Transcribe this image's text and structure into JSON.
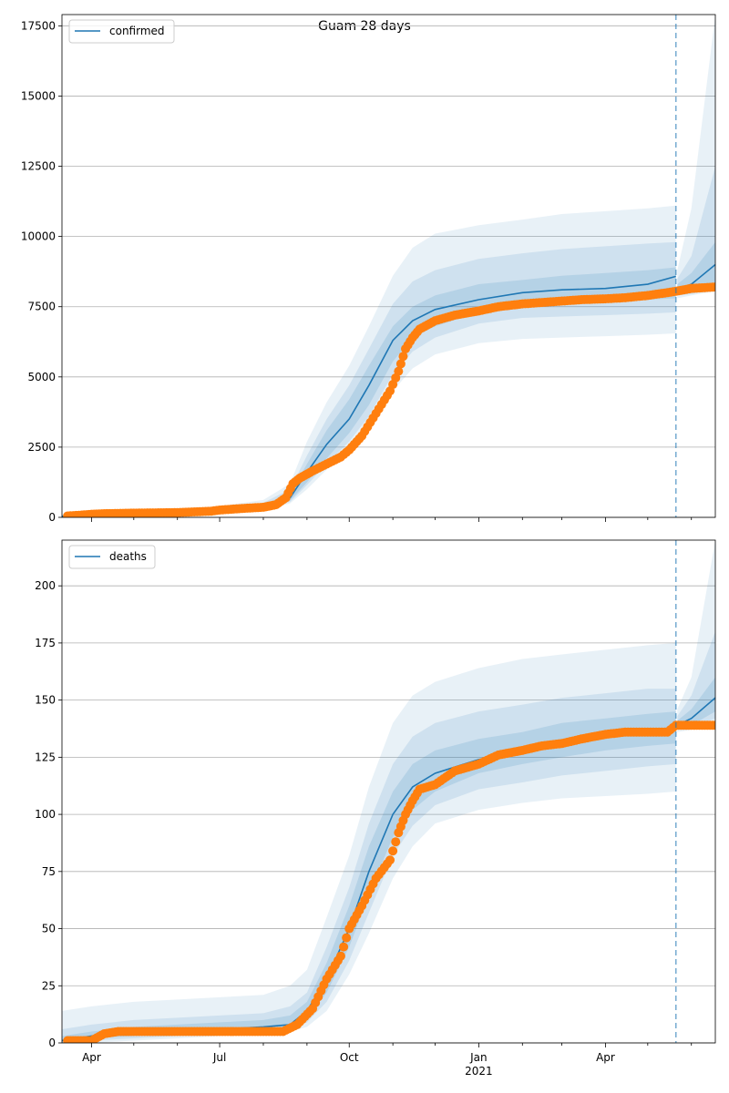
{
  "figure": {
    "title": "Guam 28 days"
  },
  "colors": {
    "model_line": "#1f77b4",
    "observed": "#ff7f0e",
    "band": "#1f77b4",
    "grid": "#b0b0b0",
    "forecast_line": "#1f77b4"
  },
  "chart_data": [
    {
      "type": "line",
      "legend": "confirmed",
      "legend_position": "upper-left",
      "grid": "y",
      "xlim": [
        "2020-03-11",
        "2021-06-18"
      ],
      "ylim": [
        0,
        17900
      ],
      "yticks": [
        0,
        2500,
        5000,
        7500,
        10000,
        12500,
        15000,
        17500
      ],
      "ytick_labels": [
        "0",
        "2500",
        "5000",
        "7500",
        "10000",
        "12500",
        "15000",
        "17500"
      ],
      "xticks": [
        {
          "date": "2020-04-01",
          "label": "Apr"
        },
        {
          "date": "2020-07-01",
          "label": "Jul"
        },
        {
          "date": "2020-10-01",
          "label": "Oct"
        },
        {
          "date": "2021-01-01",
          "label": "Jan",
          "sublabel": "2021"
        },
        {
          "date": "2021-04-01",
          "label": "Apr"
        }
      ],
      "forecast_start": "2021-05-21",
      "model": {
        "name": "confirmed",
        "x": [
          "2020-03-11",
          "2020-04-01",
          "2020-05-01",
          "2020-06-01",
          "2020-07-01",
          "2020-08-01",
          "2020-08-20",
          "2020-09-01",
          "2020-09-15",
          "2020-10-01",
          "2020-10-15",
          "2020-11-01",
          "2020-11-15",
          "2020-12-01",
          "2021-01-01",
          "2021-02-01",
          "2021-03-01",
          "2021-04-01",
          "2021-05-01",
          "2021-05-21",
          "2021-05-22",
          "2021-06-01",
          "2021-06-18"
        ],
        "y": [
          40,
          90,
          110,
          150,
          240,
          380,
          700,
          1600,
          2600,
          3500,
          4700,
          6300,
          7000,
          7400,
          7750,
          8000,
          8100,
          8150,
          8300,
          8580,
          8110,
          8300,
          9000
        ],
        "inner_low": [
          30,
          70,
          90,
          120,
          200,
          320,
          600,
          1250,
          2100,
          3000,
          4000,
          5550,
          6400,
          6800,
          7300,
          7500,
          7600,
          7700,
          7750,
          7800,
          8000,
          8050,
          8300
        ],
        "inner_high": [
          60,
          120,
          140,
          190,
          300,
          450,
          850,
          1900,
          3100,
          4200,
          5400,
          6800,
          7500,
          7900,
          8300,
          8450,
          8600,
          8700,
          8800,
          8900,
          8300,
          8700,
          9800
        ],
        "mid_low": [
          20,
          60,
          80,
          110,
          180,
          280,
          550,
          1150,
          1900,
          2700,
          3600,
          5100,
          5900,
          6400,
          6900,
          7100,
          7150,
          7200,
          7250,
          7300,
          7900,
          7950,
          8150
        ],
        "mid_high": [
          80,
          150,
          170,
          220,
          340,
          520,
          1000,
          2200,
          3500,
          4700,
          6000,
          7600,
          8400,
          8800,
          9200,
          9400,
          9550,
          9650,
          9750,
          9800,
          8500,
          9300,
          12500
        ],
        "outer_low": [
          10,
          40,
          60,
          90,
          150,
          240,
          500,
          1000,
          1700,
          2400,
          3200,
          4500,
          5300,
          5800,
          6200,
          6350,
          6400,
          6450,
          6500,
          6550,
          7800,
          7900,
          8050
        ],
        "outer_high": [
          110,
          200,
          220,
          270,
          400,
          620,
          1200,
          2700,
          4100,
          5400,
          6800,
          8600,
          9600,
          10100,
          10400,
          10600,
          10800,
          10900,
          11000,
          11100,
          8800,
          11000,
          17900
        ]
      },
      "observed": {
        "x": [
          "2020-03-15",
          "2020-03-25",
          "2020-04-01",
          "2020-04-10",
          "2020-05-01",
          "2020-06-01",
          "2020-06-25",
          "2020-07-01",
          "2020-07-15",
          "2020-08-01",
          "2020-08-10",
          "2020-08-17",
          "2020-08-22",
          "2020-08-27",
          "2020-09-05",
          "2020-09-15",
          "2020-09-25",
          "2020-10-01",
          "2020-10-10",
          "2020-10-20",
          "2020-10-30",
          "2020-11-05",
          "2020-11-10",
          "2020-11-15",
          "2020-11-20",
          "2020-12-01",
          "2020-12-15",
          "2021-01-01",
          "2021-01-15",
          "2021-02-01",
          "2021-02-15",
          "2021-03-01",
          "2021-03-15",
          "2021-04-01",
          "2021-04-15",
          "2021-05-01",
          "2021-05-15",
          "2021-05-21",
          "2021-06-01",
          "2021-06-18"
        ],
        "y": [
          50,
          80,
          110,
          130,
          150,
          170,
          220,
          260,
          310,
          360,
          450,
          700,
          1200,
          1400,
          1650,
          1900,
          2150,
          2400,
          2900,
          3700,
          4500,
          5200,
          6000,
          6400,
          6700,
          7000,
          7200,
          7350,
          7500,
          7600,
          7650,
          7700,
          7750,
          7780,
          7820,
          7900,
          8000,
          8050,
          8150,
          8200
        ]
      }
    },
    {
      "type": "line",
      "legend": "deaths",
      "legend_position": "upper-left",
      "grid": "y",
      "xlim": [
        "2020-03-11",
        "2021-06-18"
      ],
      "ylim": [
        0,
        220
      ],
      "yticks": [
        0,
        25,
        50,
        75,
        100,
        125,
        150,
        175,
        200
      ],
      "ytick_labels": [
        "0",
        "25",
        "50",
        "75",
        "100",
        "125",
        "150",
        "175",
        "200"
      ],
      "xticks": [
        {
          "date": "2020-04-01",
          "label": "Apr"
        },
        {
          "date": "2020-07-01",
          "label": "Jul"
        },
        {
          "date": "2020-10-01",
          "label": "Oct"
        },
        {
          "date": "2021-01-01",
          "label": "Jan",
          "sublabel": "2021"
        },
        {
          "date": "2021-04-01",
          "label": "Apr"
        }
      ],
      "forecast_start": "2021-05-21",
      "model": {
        "name": "deaths",
        "x": [
          "2020-03-11",
          "2020-04-01",
          "2020-05-01",
          "2020-06-01",
          "2020-07-01",
          "2020-08-01",
          "2020-08-20",
          "2020-09-01",
          "2020-09-15",
          "2020-10-01",
          "2020-10-15",
          "2020-11-01",
          "2020-11-15",
          "2020-12-01",
          "2021-01-01",
          "2021-02-01",
          "2021-03-01",
          "2021-04-01",
          "2021-05-01",
          "2021-05-21",
          "2021-05-22",
          "2021-06-01",
          "2021-06-18"
        ],
        "y": [
          1,
          3,
          5,
          5,
          6,
          7,
          8,
          14,
          28,
          50,
          75,
          100,
          112,
          118,
          124,
          128,
          132,
          135,
          137,
          138,
          139,
          142,
          151
        ],
        "inner_low": [
          0,
          2,
          3,
          4,
          5,
          6,
          7,
          11,
          22,
          42,
          65,
          90,
          102,
          110,
          118,
          122,
          125,
          128,
          130,
          131,
          138,
          139,
          145
        ],
        "inner_high": [
          3,
          5,
          7,
          8,
          9,
          10,
          12,
          18,
          35,
          60,
          86,
          110,
          122,
          128,
          133,
          136,
          140,
          142,
          144,
          145,
          141,
          146,
          160
        ],
        "mid_low": [
          0,
          1,
          2,
          3,
          4,
          5,
          6,
          9,
          18,
          36,
          57,
          82,
          95,
          104,
          111,
          114,
          117,
          119,
          121,
          122,
          137,
          138,
          142
        ],
        "mid_high": [
          6,
          8,
          10,
          11,
          12,
          13,
          16,
          22,
          42,
          68,
          96,
          122,
          134,
          140,
          145,
          148,
          151,
          153,
          155,
          155,
          143,
          152,
          180
        ],
        "outer_low": [
          0,
          0,
          1,
          2,
          3,
          4,
          5,
          7,
          14,
          30,
          48,
          72,
          86,
          96,
          102,
          105,
          107,
          108,
          109,
          110,
          136,
          137,
          140
        ],
        "outer_high": [
          14,
          16,
          18,
          19,
          20,
          21,
          25,
          32,
          55,
          82,
          112,
          140,
          152,
          158,
          164,
          168,
          170,
          172,
          174,
          175,
          146,
          160,
          220
        ]
      },
      "observed": {
        "x": [
          "2020-03-15",
          "2020-04-01",
          "2020-04-10",
          "2020-04-20",
          "2020-05-01",
          "2020-06-01",
          "2020-07-01",
          "2020-08-01",
          "2020-08-15",
          "2020-08-25",
          "2020-09-05",
          "2020-09-15",
          "2020-09-25",
          "2020-10-01",
          "2020-10-10",
          "2020-10-20",
          "2020-10-30",
          "2020-11-05",
          "2020-11-10",
          "2020-11-15",
          "2020-11-20",
          "2020-12-01",
          "2020-12-15",
          "2021-01-01",
          "2021-01-15",
          "2021-02-01",
          "2021-02-15",
          "2021-03-01",
          "2021-03-15",
          "2021-04-01",
          "2021-04-15",
          "2021-05-01",
          "2021-05-15",
          "2021-05-21",
          "2021-06-01",
          "2021-06-18"
        ],
        "y": [
          1,
          1,
          4,
          5,
          5,
          5,
          5,
          5,
          5,
          8,
          15,
          28,
          38,
          50,
          60,
          72,
          80,
          92,
          100,
          106,
          111,
          113,
          119,
          122,
          126,
          128,
          130,
          131,
          133,
          135,
          136,
          136,
          136,
          139,
          139,
          139
        ]
      }
    }
  ]
}
